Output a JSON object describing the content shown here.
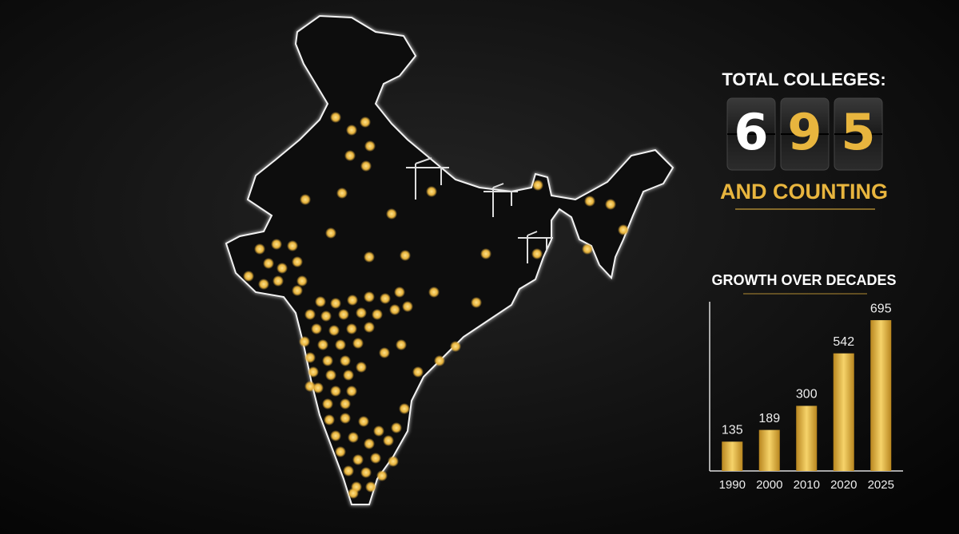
{
  "header": {
    "title": "TOTAL COLLEGES:",
    "digits": [
      "6",
      "9",
      "5"
    ],
    "subtitle": "AND COUNTING"
  },
  "chart_data": {
    "type": "bar",
    "title": "GROWTH OVER DECADES",
    "categories": [
      "1990",
      "2000",
      "2010",
      "2020",
      "2025"
    ],
    "values": [
      135,
      189,
      300,
      542,
      695
    ],
    "color": "#e0b43a",
    "ylim": [
      0,
      780
    ]
  }
}
